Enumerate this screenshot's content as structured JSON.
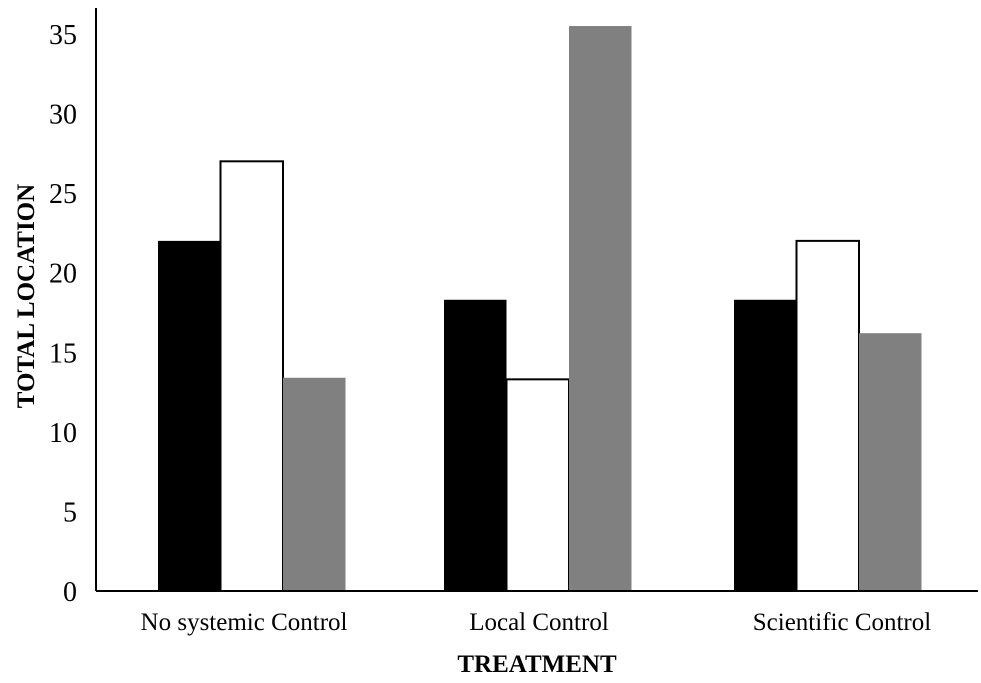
{
  "chart_data": {
    "type": "bar",
    "title": "",
    "xlabel": "TREATMENT",
    "ylabel": "TOTAL LOCATION",
    "categories": [
      "No systemic Control",
      "Local Control",
      "Scientific Control"
    ],
    "series": [
      {
        "values": [
          22,
          18.3,
          18.3
        ],
        "color": "#000000"
      },
      {
        "values": [
          27,
          13.3,
          22
        ],
        "color": "#ffffff"
      },
      {
        "values": [
          13.4,
          35.5,
          16.2
        ],
        "color": "#808080"
      }
    ],
    "ylim": [
      0,
      35
    ],
    "yticks": [
      0,
      5,
      10,
      15,
      20,
      25,
      30,
      35
    ],
    "grid": false,
    "legend": "none"
  }
}
